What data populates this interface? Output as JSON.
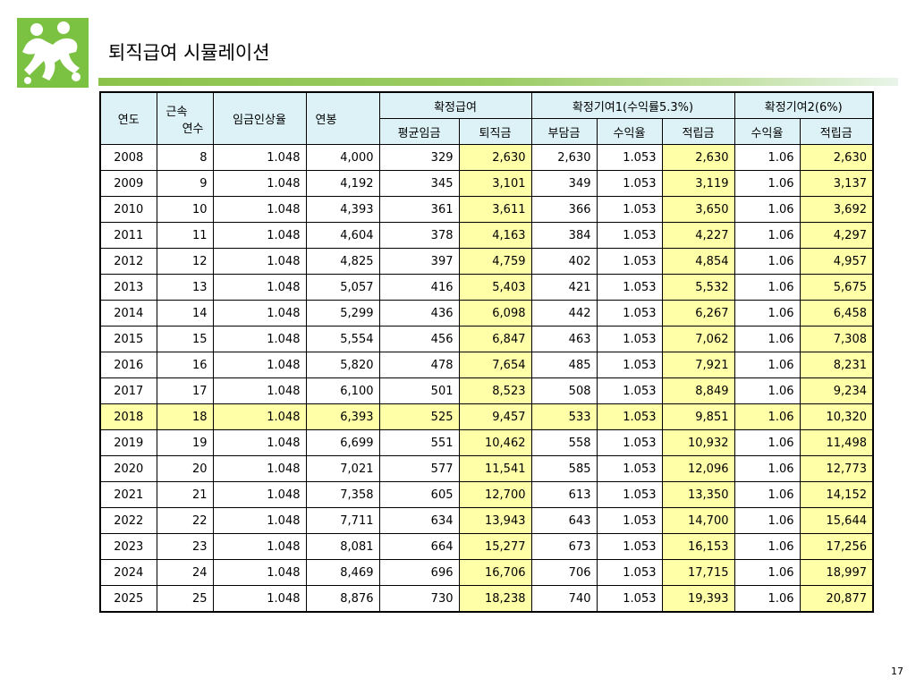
{
  "title": "퇴직급여 시뮬레이션",
  "page_number": "17",
  "colors": {
    "header_bg": "#dcf2f7",
    "highlight": "#ffffa8",
    "accent_bar": "#8bc34a",
    "logo_green": "#7cc242"
  },
  "logo_icon": "people-logo-icon",
  "table": {
    "headers": {
      "year": "연도",
      "tenure_a": "근속",
      "tenure_b": "연수",
      "wage_rate": "임금인상율",
      "salary": "연봉",
      "db": "확정급여",
      "dc1": "확정기여1(수익률5.3%)",
      "dc2": "확정기여2(6%)",
      "db_avg": "평균임금",
      "db_ret": "퇴직금",
      "dc1_pay": "부담금",
      "dc1_rate": "수익율",
      "dc1_acc": "적립금",
      "dc2_rate": "수익율",
      "dc2_acc": "적립금"
    },
    "rows": [
      [
        "2008",
        "8",
        "1.048",
        "4,000",
        "329",
        "2,630",
        "2,630",
        "1.053",
        "2,630",
        "1.06",
        "2,630"
      ],
      [
        "2009",
        "9",
        "1.048",
        "4,192",
        "345",
        "3,101",
        "349",
        "1.053",
        "3,119",
        "1.06",
        "3,137"
      ],
      [
        "2010",
        "10",
        "1.048",
        "4,393",
        "361",
        "3,611",
        "366",
        "1.053",
        "3,650",
        "1.06",
        "3,692"
      ],
      [
        "2011",
        "11",
        "1.048",
        "4,604",
        "378",
        "4,163",
        "384",
        "1.053",
        "4,227",
        "1.06",
        "4,297"
      ],
      [
        "2012",
        "12",
        "1.048",
        "4,825",
        "397",
        "4,759",
        "402",
        "1.053",
        "4,854",
        "1.06",
        "4,957"
      ],
      [
        "2013",
        "13",
        "1.048",
        "5,057",
        "416",
        "5,403",
        "421",
        "1.053",
        "5,532",
        "1.06",
        "5,675"
      ],
      [
        "2014",
        "14",
        "1.048",
        "5,299",
        "436",
        "6,098",
        "442",
        "1.053",
        "6,267",
        "1.06",
        "6,458"
      ],
      [
        "2015",
        "15",
        "1.048",
        "5,554",
        "456",
        "6,847",
        "463",
        "1.053",
        "7,062",
        "1.06",
        "7,308"
      ],
      [
        "2016",
        "16",
        "1.048",
        "5,820",
        "478",
        "7,654",
        "485",
        "1.053",
        "7,921",
        "1.06",
        "8,231"
      ],
      [
        "2017",
        "17",
        "1.048",
        "6,100",
        "501",
        "8,523",
        "508",
        "1.053",
        "8,849",
        "1.06",
        "9,234"
      ],
      [
        "2018",
        "18",
        "1.048",
        "6,393",
        "525",
        "9,457",
        "533",
        "1.053",
        "9,851",
        "1.06",
        "10,320"
      ],
      [
        "2019",
        "19",
        "1.048",
        "6,699",
        "551",
        "10,462",
        "558",
        "1.053",
        "10,932",
        "1.06",
        "11,498"
      ],
      [
        "2020",
        "20",
        "1.048",
        "7,021",
        "577",
        "11,541",
        "585",
        "1.053",
        "12,096",
        "1.06",
        "12,773"
      ],
      [
        "2021",
        "21",
        "1.048",
        "7,358",
        "605",
        "12,700",
        "613",
        "1.053",
        "13,350",
        "1.06",
        "14,152"
      ],
      [
        "2022",
        "22",
        "1.048",
        "7,711",
        "634",
        "13,943",
        "643",
        "1.053",
        "14,700",
        "1.06",
        "15,644"
      ],
      [
        "2023",
        "23",
        "1.048",
        "8,081",
        "664",
        "15,277",
        "673",
        "1.053",
        "16,153",
        "1.06",
        "17,256"
      ],
      [
        "2024",
        "24",
        "1.048",
        "8,469",
        "696",
        "16,706",
        "706",
        "1.053",
        "17,715",
        "1.06",
        "18,997"
      ],
      [
        "2025",
        "25",
        "1.048",
        "8,876",
        "730",
        "18,238",
        "740",
        "1.053",
        "19,393",
        "1.06",
        "20,877"
      ]
    ],
    "highlight_row_index": 10,
    "highlight_columns": [
      5,
      8,
      10
    ]
  }
}
